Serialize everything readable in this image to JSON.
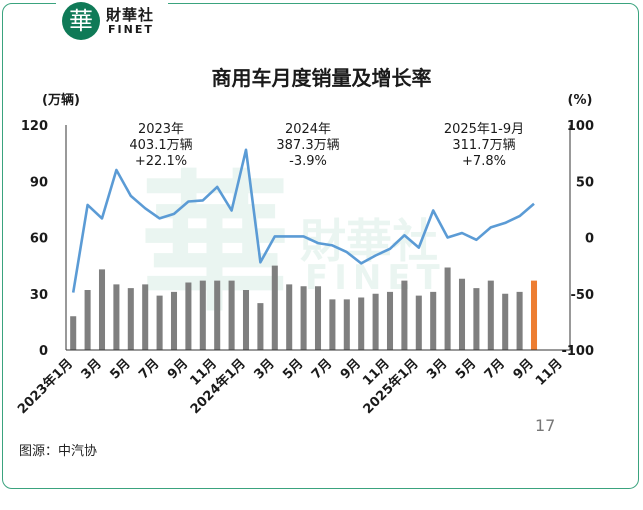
{
  "brand": {
    "name_cn": "財華社",
    "name_en": "FINET",
    "mark": "華"
  },
  "title": "商用车月度销量及增长率",
  "source": "图源：中汽协",
  "page_number": "17",
  "colors": {
    "bar": "#7f7f7f",
    "bar_highlight": "#ed7d31",
    "line": "#5b9bd5",
    "negative": "#e02020"
  },
  "chart_data": {
    "type": "bar",
    "combo": "bar + line (dual axis)",
    "left_axis_unit": "(万辆)",
    "right_axis_unit": "(%)",
    "ylim_left": [
      0,
      120
    ],
    "ylim_right": [
      -100,
      100
    ],
    "yticks_left": [
      "0",
      "30",
      "60",
      "90",
      "120"
    ],
    "yticks_right": [
      "-100",
      "-50",
      "0",
      "50",
      "100"
    ],
    "xtick_labels": [
      "2023年1月",
      "3月",
      "5月",
      "7月",
      "9月",
      "11月",
      "2024年1月",
      "3月",
      "5月",
      "7月",
      "9月",
      "11月",
      "2025年1月",
      "3月",
      "5月",
      "7月",
      "9月",
      "11月"
    ],
    "categories": [
      "2023-01",
      "2023-02",
      "2023-03",
      "2023-04",
      "2023-05",
      "2023-06",
      "2023-07",
      "2023-08",
      "2023-09",
      "2023-10",
      "2023-11",
      "2023-12",
      "2024-01",
      "2024-02",
      "2024-03",
      "2024-04",
      "2024-05",
      "2024-06",
      "2024-07",
      "2024-08",
      "2024-09",
      "2024-10",
      "2024-11",
      "2024-12",
      "2025-01",
      "2025-02",
      "2025-03",
      "2025-04",
      "2025-05",
      "2025-06",
      "2025-07",
      "2025-08",
      "2025-09",
      "2025-10",
      "2025-11"
    ],
    "grid": false,
    "legend": "none",
    "series": [
      {
        "type": "bar",
        "axis": "left",
        "values": [
          18,
          32,
          43,
          35,
          33,
          35,
          29,
          31,
          36,
          37,
          37,
          37,
          32,
          25,
          45,
          35,
          34,
          34,
          27,
          27,
          28,
          30,
          31,
          37,
          29,
          31,
          44,
          38,
          33,
          37,
          30,
          31,
          37,
          null,
          null
        ]
      },
      {
        "type": "line",
        "axis": "right",
        "values": [
          -49,
          29,
          17,
          60,
          37,
          26,
          17,
          21,
          32,
          33,
          45,
          24,
          78,
          -22,
          1,
          1,
          1,
          -5,
          -7,
          -13,
          -23,
          -16,
          -10,
          2,
          -9,
          24,
          0,
          4,
          -2,
          9,
          13,
          19,
          30,
          null,
          null
        ]
      }
    ],
    "highlight_index": 32,
    "annotations": [
      {
        "year": "2023年",
        "total": "403.1万辆",
        "growth": "+22.1%"
      },
      {
        "year": "2024年",
        "total": "387.3万辆",
        "growth": "-3.9%"
      },
      {
        "year": "2025年1-9月",
        "total": "311.7万辆",
        "growth": "+7.8%"
      }
    ]
  }
}
